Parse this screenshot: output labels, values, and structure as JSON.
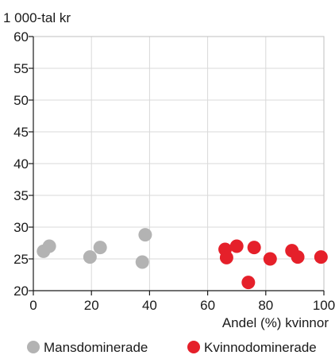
{
  "chart_data": {
    "type": "scatter",
    "ylabel": "1 000-tal kr",
    "xlabel": "Andel (%) kvinnor",
    "xlim": [
      0,
      100
    ],
    "ylim": [
      20,
      60
    ],
    "x_ticks": [
      "0",
      "20",
      "40",
      "60",
      "80",
      "100"
    ],
    "y_ticks": [
      "20",
      "25",
      "30",
      "35",
      "40",
      "45",
      "50",
      "55",
      "60"
    ],
    "grid": true,
    "legend_position": "bottom",
    "series": [
      {
        "name": "Mansdominerade",
        "color": "#b3b3b3",
        "points": [
          [
            3.5,
            26.2
          ],
          [
            5.5,
            27.0
          ],
          [
            19.5,
            25.3
          ],
          [
            23,
            26.8
          ],
          [
            37.5,
            24.5
          ],
          [
            38.5,
            28.8
          ]
        ]
      },
      {
        "name": "Kvinnodominerade",
        "color": "#e5202a",
        "points": [
          [
            66,
            26.5
          ],
          [
            66.5,
            25.2
          ],
          [
            70,
            27.0
          ],
          [
            74,
            21.3
          ],
          [
            76,
            26.8
          ],
          [
            81.5,
            25.0
          ],
          [
            89,
            26.3
          ],
          [
            91,
            25.3
          ],
          [
            99,
            25.3
          ]
        ]
      }
    ]
  }
}
